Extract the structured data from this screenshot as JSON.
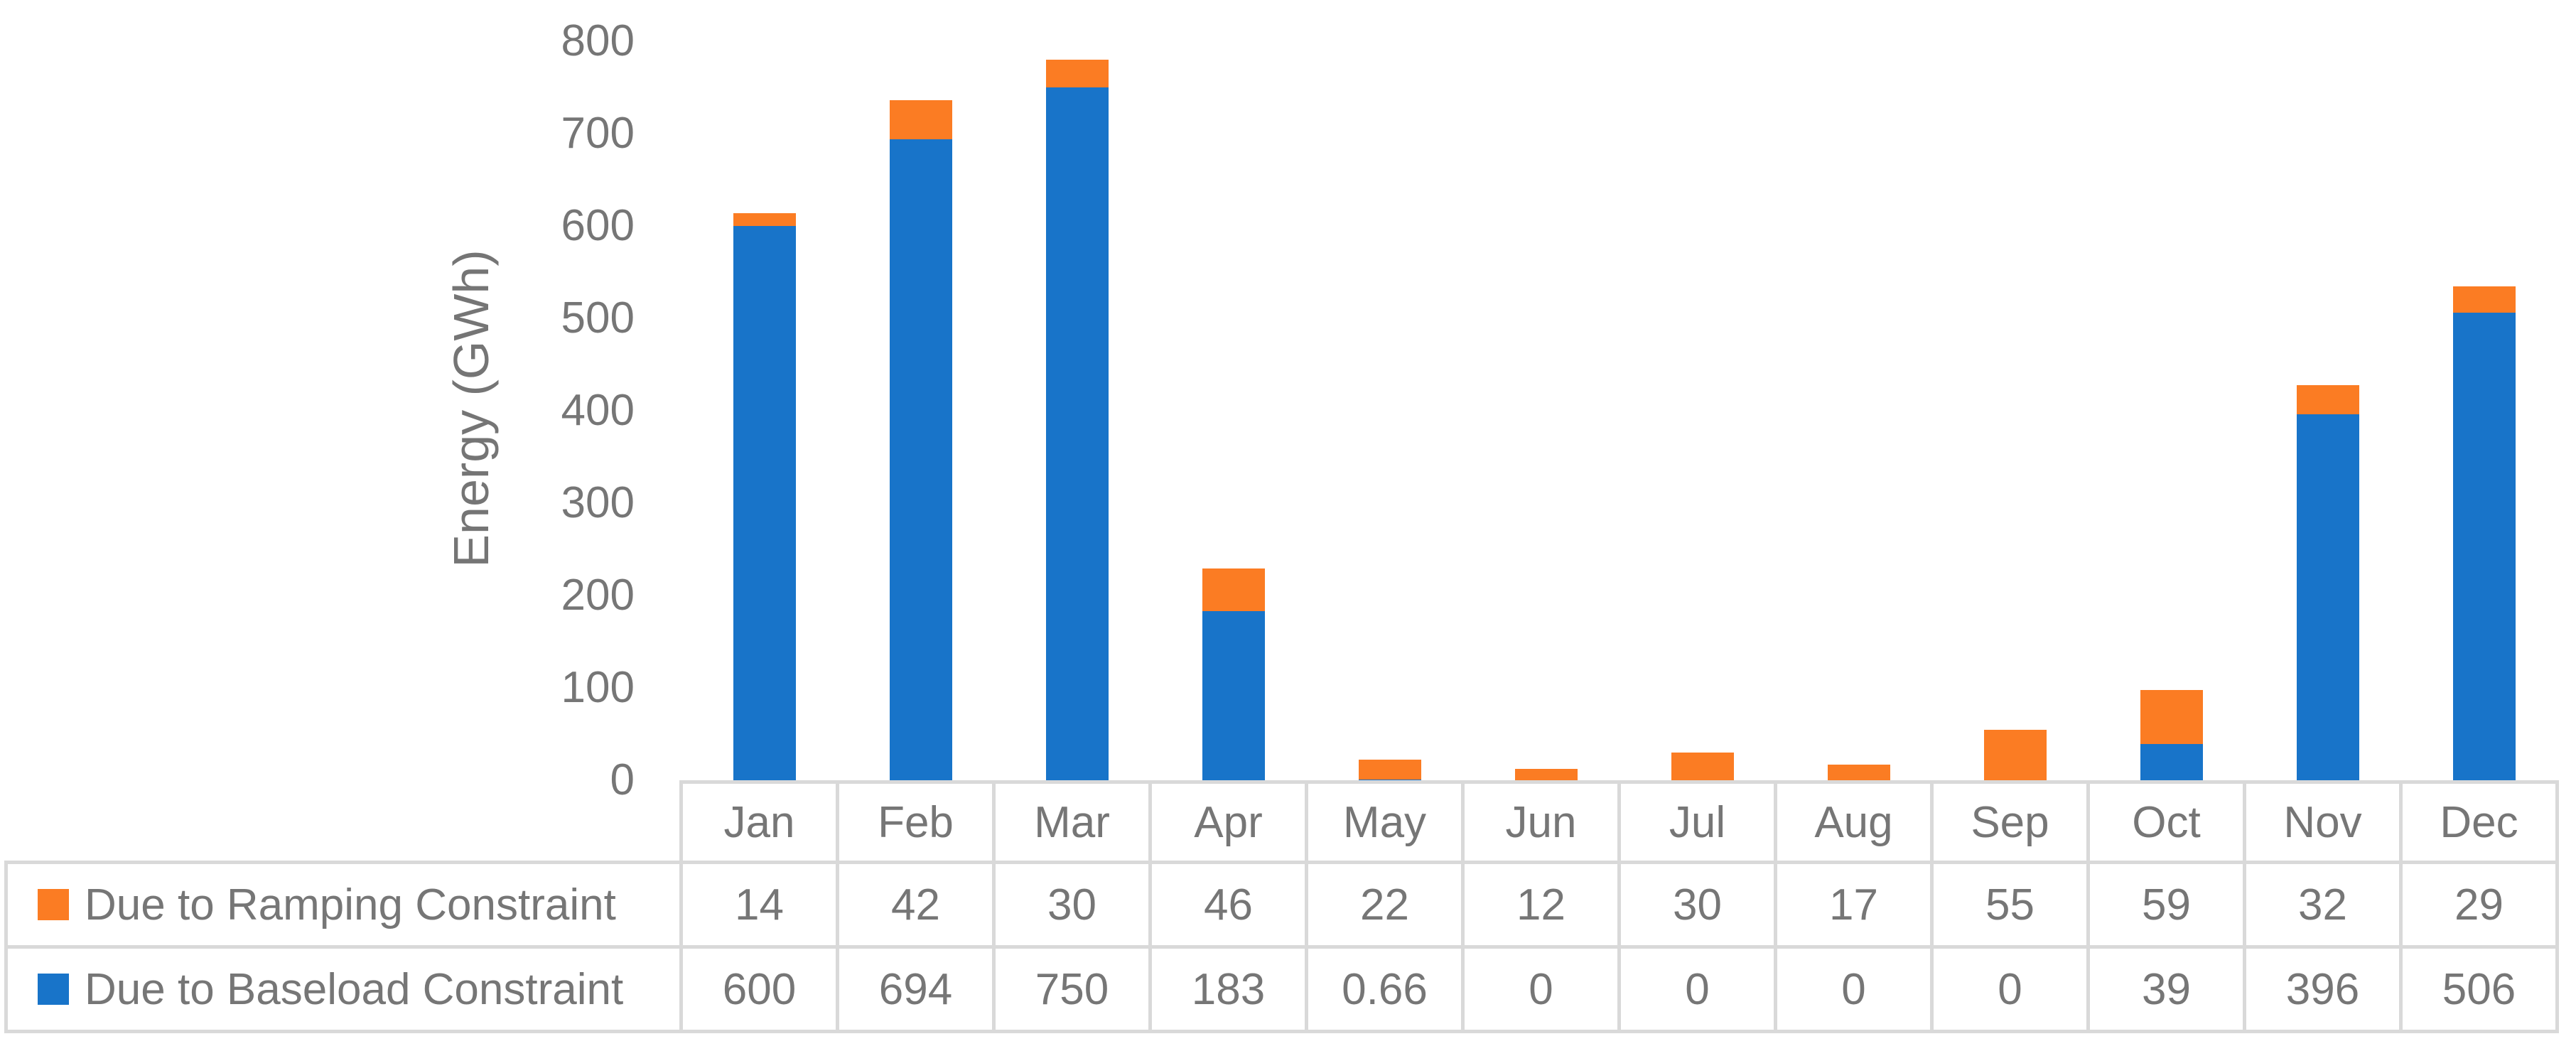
{
  "chart_data": {
    "type": "bar",
    "stacked": true,
    "title": "",
    "xlabel": "",
    "ylabel": "Energy (GWh)",
    "ylim": [
      0,
      800
    ],
    "yticks": [
      800,
      700,
      600,
      500,
      400,
      300,
      200,
      100,
      0
    ],
    "grid": false,
    "legend_position": "left column of data table below chart",
    "categories": [
      "Jan",
      "Feb",
      "Mar",
      "Apr",
      "May",
      "Jun",
      "Jul",
      "Aug",
      "Sep",
      "Oct",
      "Nov",
      "Dec"
    ],
    "series": [
      {
        "name": "Due to Ramping Constraint",
        "color": "#FB7C23",
        "stack_order": "top",
        "values": [
          14,
          42,
          30,
          46,
          22,
          12,
          30,
          17,
          55,
          59,
          32,
          29
        ]
      },
      {
        "name": "Due to Baseload Constraint",
        "color": "#1874C9",
        "stack_order": "bottom",
        "values": [
          600,
          694,
          750,
          183,
          0.66,
          0,
          0,
          0,
          0,
          39,
          396,
          506
        ]
      }
    ]
  },
  "colors": {
    "text": "#767676",
    "table_border": "#D9D9D9",
    "background": "#FFFFFF"
  }
}
